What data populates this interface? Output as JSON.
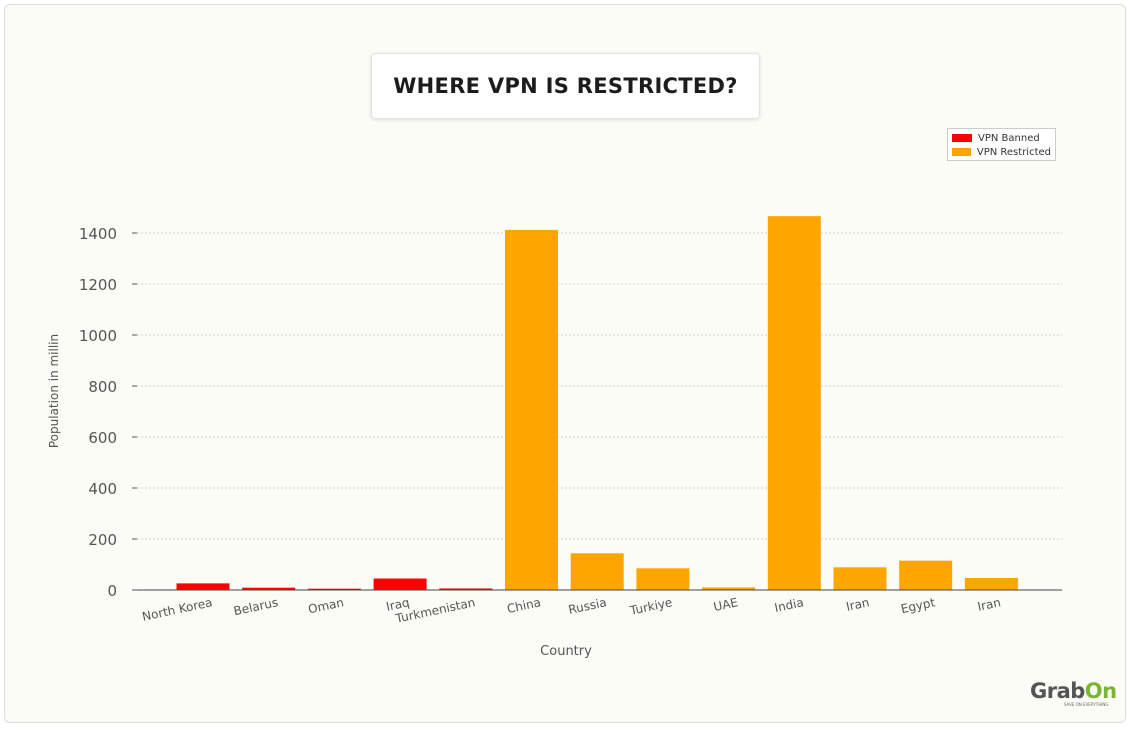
{
  "chart_data": {
    "type": "bar",
    "title": "WHERE VPN IS RESTRICTED?",
    "xlabel": "Country",
    "ylabel": "Population in millin",
    "ylim": [
      0,
      1500
    ],
    "yticks": [
      0,
      200,
      400,
      600,
      800,
      1000,
      1200,
      1400
    ],
    "grid": true,
    "legend_position": "top-right",
    "categories": [
      "North Korea",
      "Belarus",
      "Oman",
      "Iraq",
      "Turkmenistan",
      "China",
      "Russia",
      "Turkiye",
      "UAE",
      "India",
      "Iran",
      "Egypt",
      "Iran"
    ],
    "series": [
      {
        "name": "VPN Banned",
        "color": "#ff0000",
        "values": [
          26,
          9,
          5,
          45,
          6,
          null,
          null,
          null,
          null,
          null,
          null,
          null,
          null
        ]
      },
      {
        "name": "VPN Restricted",
        "color": "#ffa500",
        "values": [
          null,
          null,
          null,
          null,
          null,
          1412,
          144,
          85,
          10,
          1466,
          89,
          115,
          47
        ]
      }
    ]
  },
  "brand": {
    "name_part1": "Grab",
    "name_part2": "On",
    "tagline": "SAVE ON EVERYTHING",
    "color_gray": "#545454",
    "color_green": "#7cb434"
  }
}
